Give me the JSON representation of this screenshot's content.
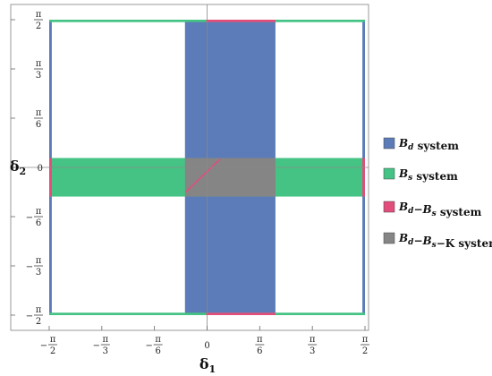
{
  "chart_data": {
    "type": "area",
    "title": "",
    "xlabel": "δ1",
    "ylabel": "δ2",
    "xlim": [
      -1.5708,
      1.5708
    ],
    "ylim": [
      -1.5708,
      1.5708
    ],
    "x_ticks": [
      {
        "value": -1.5708,
        "sign": "−",
        "num": "π",
        "den": "2"
      },
      {
        "value": -1.0472,
        "sign": "−",
        "num": "π",
        "den": "3"
      },
      {
        "value": -0.5236,
        "sign": "−",
        "num": "π",
        "den": "6"
      },
      {
        "value": 0,
        "plain": "0"
      },
      {
        "value": 0.5236,
        "sign": "",
        "num": "π",
        "den": "6"
      },
      {
        "value": 1.0472,
        "sign": "",
        "num": "π",
        "den": "3"
      },
      {
        "value": 1.5708,
        "sign": "",
        "num": "π",
        "den": "2"
      }
    ],
    "y_ticks": [
      {
        "value": -1.5708,
        "sign": "−",
        "num": "π",
        "den": "2"
      },
      {
        "value": -1.0472,
        "sign": "−",
        "num": "π",
        "den": "3"
      },
      {
        "value": -0.5236,
        "sign": "−",
        "num": "π",
        "den": "6"
      },
      {
        "value": 0,
        "plain": "0"
      },
      {
        "value": 0.5236,
        "sign": "",
        "num": "π",
        "den": "6"
      },
      {
        "value": 1.0472,
        "sign": "",
        "num": "π",
        "den": "3"
      },
      {
        "value": 1.5708,
        "sign": "",
        "num": "π",
        "den": "2"
      }
    ],
    "legend": {
      "position": "right",
      "entries": [
        {
          "key": "bd",
          "label": "B_d system",
          "color": "#5b7cb8"
        },
        {
          "key": "bs",
          "label": "B_s system",
          "color": "#45c384"
        },
        {
          "key": "bdbs",
          "label": "B_d−B_s system",
          "color": "#e24d7c"
        },
        {
          "key": "bdbsk",
          "label": "B_d−B_s−K system",
          "color": "#858585"
        }
      ]
    },
    "regions": [
      {
        "series": "bd",
        "x": [
          -0.22,
          0.68
        ],
        "y": [
          -1.5708,
          1.5708
        ]
      },
      {
        "series": "bd",
        "x": [
          -1.5708,
          -1.545
        ],
        "y": [
          -1.5708,
          1.5708
        ]
      },
      {
        "series": "bd",
        "x": [
          1.545,
          1.5708
        ],
        "y": [
          -1.5708,
          1.5708
        ]
      },
      {
        "series": "bs",
        "x": [
          -1.5708,
          1.5708
        ],
        "y": [
          -0.31,
          0.1
        ]
      },
      {
        "series": "bs",
        "x": [
          -1.5708,
          1.5708
        ],
        "y": [
          1.545,
          1.5708
        ]
      },
      {
        "series": "bs",
        "x": [
          -1.5708,
          1.5708
        ],
        "y": [
          -1.5708,
          -1.545
        ]
      },
      {
        "series": "bdbs",
        "x": [
          -0.01,
          0.68
        ],
        "y": [
          1.545,
          1.5708
        ]
      },
      {
        "series": "bdbs",
        "x": [
          -0.01,
          0.68
        ],
        "y": [
          -1.5708,
          -1.545
        ]
      },
      {
        "series": "bdbs",
        "x": [
          -1.5708,
          -1.545
        ],
        "y": [
          -0.31,
          0.1
        ]
      },
      {
        "series": "bdbs",
        "x": [
          1.545,
          1.5708
        ],
        "y": [
          -0.31,
          0.1
        ]
      },
      {
        "series": "bdbsk",
        "x": [
          -0.22,
          0.68
        ],
        "y": [
          -0.31,
          0.1
        ]
      }
    ],
    "lines": [
      {
        "series": "bdbs",
        "x": [
          -0.21,
          0.13
        ],
        "y": [
          -0.26,
          0.09
        ]
      }
    ],
    "grid": false,
    "frame": true
  }
}
